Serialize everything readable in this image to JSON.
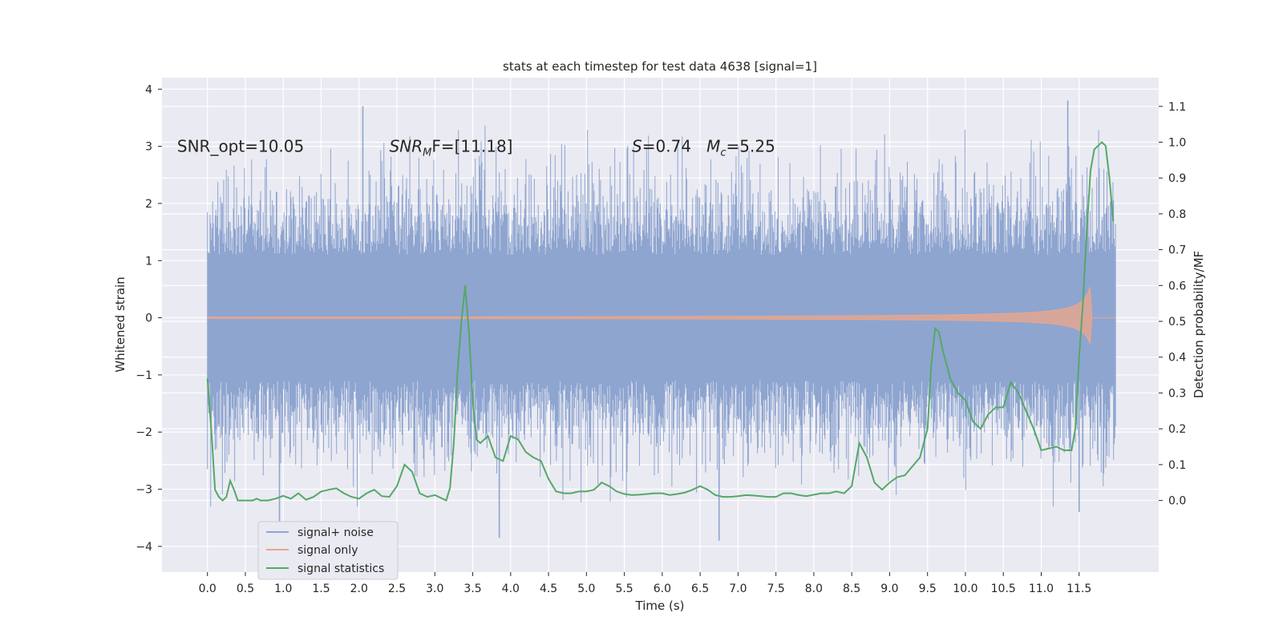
{
  "chart_data": {
    "type": "line",
    "title": "stats at each timestep for test data 4638 [signal=1]",
    "xlabel": "Time (s)",
    "ylabel": "Whitened strain",
    "y2label": "Detection probability/MF",
    "xlim": [
      -0.6,
      12.55
    ],
    "ylim": [
      -4.45,
      4.2
    ],
    "y2lim": [
      -0.2,
      1.18
    ],
    "xticks": [
      "0.0",
      "0.5",
      "1.0",
      "1.5",
      "2.0",
      "2.5",
      "3.0",
      "3.5",
      "4.0",
      "4.5",
      "5.0",
      "5.5",
      "6.0",
      "6.5",
      "7.0",
      "7.5",
      "8.0",
      "8.5",
      "9.0",
      "9.5",
      "10.0",
      "10.5",
      "11.0",
      "11.5"
    ],
    "yticks": [
      -4,
      -3,
      -2,
      -1,
      0,
      1,
      2,
      3,
      4
    ],
    "y2ticks": [
      0.0,
      0.1,
      0.2,
      0.3,
      0.4,
      0.5,
      0.6,
      0.7,
      0.8,
      0.9,
      1.0,
      1.1
    ],
    "grid": true,
    "legend_position": "lower-left",
    "annotations": [
      {
        "label": "SNR_opt=10.05",
        "x": -0.4,
        "y": 3.0
      },
      {
        "label": "SNR_MF=[11.18]",
        "x": 2.4,
        "y": 3.0
      },
      {
        "label": "S=0.74   M_c=5.25",
        "x": 5.6,
        "y": 3.0
      }
    ],
    "series": [
      {
        "name": "signal+ noise",
        "color": "#8ea5d0",
        "kind": "noise-strain",
        "t_range": [
          0.0,
          11.98
        ],
        "envelope_core": 1.1,
        "spikes": [
          {
            "t": 2.05,
            "y": 3.7
          },
          {
            "t": 11.35,
            "y": 3.8
          },
          {
            "t": 3.85,
            "y": -3.85
          },
          {
            "t": 6.75,
            "y": -3.9
          },
          {
            "t": 11.5,
            "y": -3.4
          },
          {
            "t": 0.95,
            "y": -3.6
          }
        ]
      },
      {
        "name": "signal only",
        "color": "#e9a68c",
        "kind": "chirp",
        "t_range": [
          0.0,
          11.98
        ],
        "merger_t": 11.65,
        "merger_amp": 1.0
      },
      {
        "name": "signal statistics",
        "color": "#55a868",
        "axis": "right",
        "x": [
          0.0,
          0.05,
          0.1,
          0.15,
          0.2,
          0.25,
          0.3,
          0.35,
          0.4,
          0.45,
          0.5,
          0.55,
          0.6,
          0.65,
          0.7,
          0.8,
          0.9,
          1.0,
          1.1,
          1.2,
          1.3,
          1.4,
          1.5,
          1.6,
          1.7,
          1.8,
          1.9,
          2.0,
          2.1,
          2.2,
          2.3,
          2.4,
          2.5,
          2.6,
          2.7,
          2.8,
          2.9,
          3.0,
          3.1,
          3.15,
          3.2,
          3.25,
          3.3,
          3.35,
          3.4,
          3.45,
          3.5,
          3.55,
          3.6,
          3.65,
          3.7,
          3.8,
          3.9,
          4.0,
          4.1,
          4.2,
          4.3,
          4.4,
          4.5,
          4.6,
          4.7,
          4.8,
          4.9,
          5.0,
          5.1,
          5.2,
          5.3,
          5.4,
          5.5,
          5.6,
          5.7,
          5.8,
          5.9,
          6.0,
          6.1,
          6.2,
          6.3,
          6.4,
          6.5,
          6.6,
          6.7,
          6.8,
          6.9,
          7.0,
          7.1,
          7.2,
          7.3,
          7.4,
          7.5,
          7.6,
          7.7,
          7.8,
          7.9,
          8.0,
          8.1,
          8.2,
          8.3,
          8.4,
          8.5,
          8.6,
          8.7,
          8.8,
          8.9,
          9.0,
          9.1,
          9.2,
          9.3,
          9.4,
          9.5,
          9.55,
          9.6,
          9.65,
          9.7,
          9.75,
          9.8,
          9.85,
          9.9,
          10.0,
          10.1,
          10.2,
          10.3,
          10.4,
          10.5,
          10.6,
          10.7,
          10.8,
          10.9,
          11.0,
          11.1,
          11.2,
          11.3,
          11.4,
          11.45,
          11.5,
          11.55,
          11.6,
          11.65,
          11.7,
          11.75,
          11.8,
          11.85,
          11.9,
          11.95
        ],
        "y": [
          0.34,
          0.2,
          0.03,
          0.01,
          0.0,
          0.01,
          0.055,
          0.03,
          0.0,
          0.0,
          0.0,
          0.0,
          0.0,
          0.005,
          0.0,
          0.0,
          0.005,
          0.013,
          0.005,
          0.02,
          0.002,
          0.01,
          0.025,
          0.03,
          0.034,
          0.02,
          0.01,
          0.005,
          0.02,
          0.03,
          0.012,
          0.01,
          0.04,
          0.1,
          0.08,
          0.02,
          0.01,
          0.015,
          0.005,
          0.0,
          0.035,
          0.16,
          0.36,
          0.5,
          0.6,
          0.47,
          0.28,
          0.17,
          0.16,
          0.17,
          0.18,
          0.12,
          0.11,
          0.18,
          0.17,
          0.135,
          0.12,
          0.11,
          0.06,
          0.025,
          0.02,
          0.02,
          0.025,
          0.025,
          0.03,
          0.05,
          0.04,
          0.025,
          0.018,
          0.015,
          0.016,
          0.018,
          0.02,
          0.02,
          0.015,
          0.018,
          0.022,
          0.03,
          0.04,
          0.03,
          0.015,
          0.01,
          0.01,
          0.012,
          0.015,
          0.014,
          0.012,
          0.01,
          0.01,
          0.02,
          0.02,
          0.015,
          0.012,
          0.016,
          0.02,
          0.02,
          0.025,
          0.02,
          0.04,
          0.16,
          0.12,
          0.05,
          0.03,
          0.05,
          0.065,
          0.07,
          0.095,
          0.12,
          0.2,
          0.38,
          0.48,
          0.47,
          0.42,
          0.38,
          0.34,
          0.32,
          0.3,
          0.28,
          0.22,
          0.2,
          0.24,
          0.26,
          0.26,
          0.33,
          0.3,
          0.25,
          0.2,
          0.14,
          0.145,
          0.15,
          0.14,
          0.14,
          0.2,
          0.4,
          0.55,
          0.75,
          0.92,
          0.98,
          0.99,
          1.0,
          0.99,
          0.9,
          0.78
        ]
      }
    ]
  }
}
